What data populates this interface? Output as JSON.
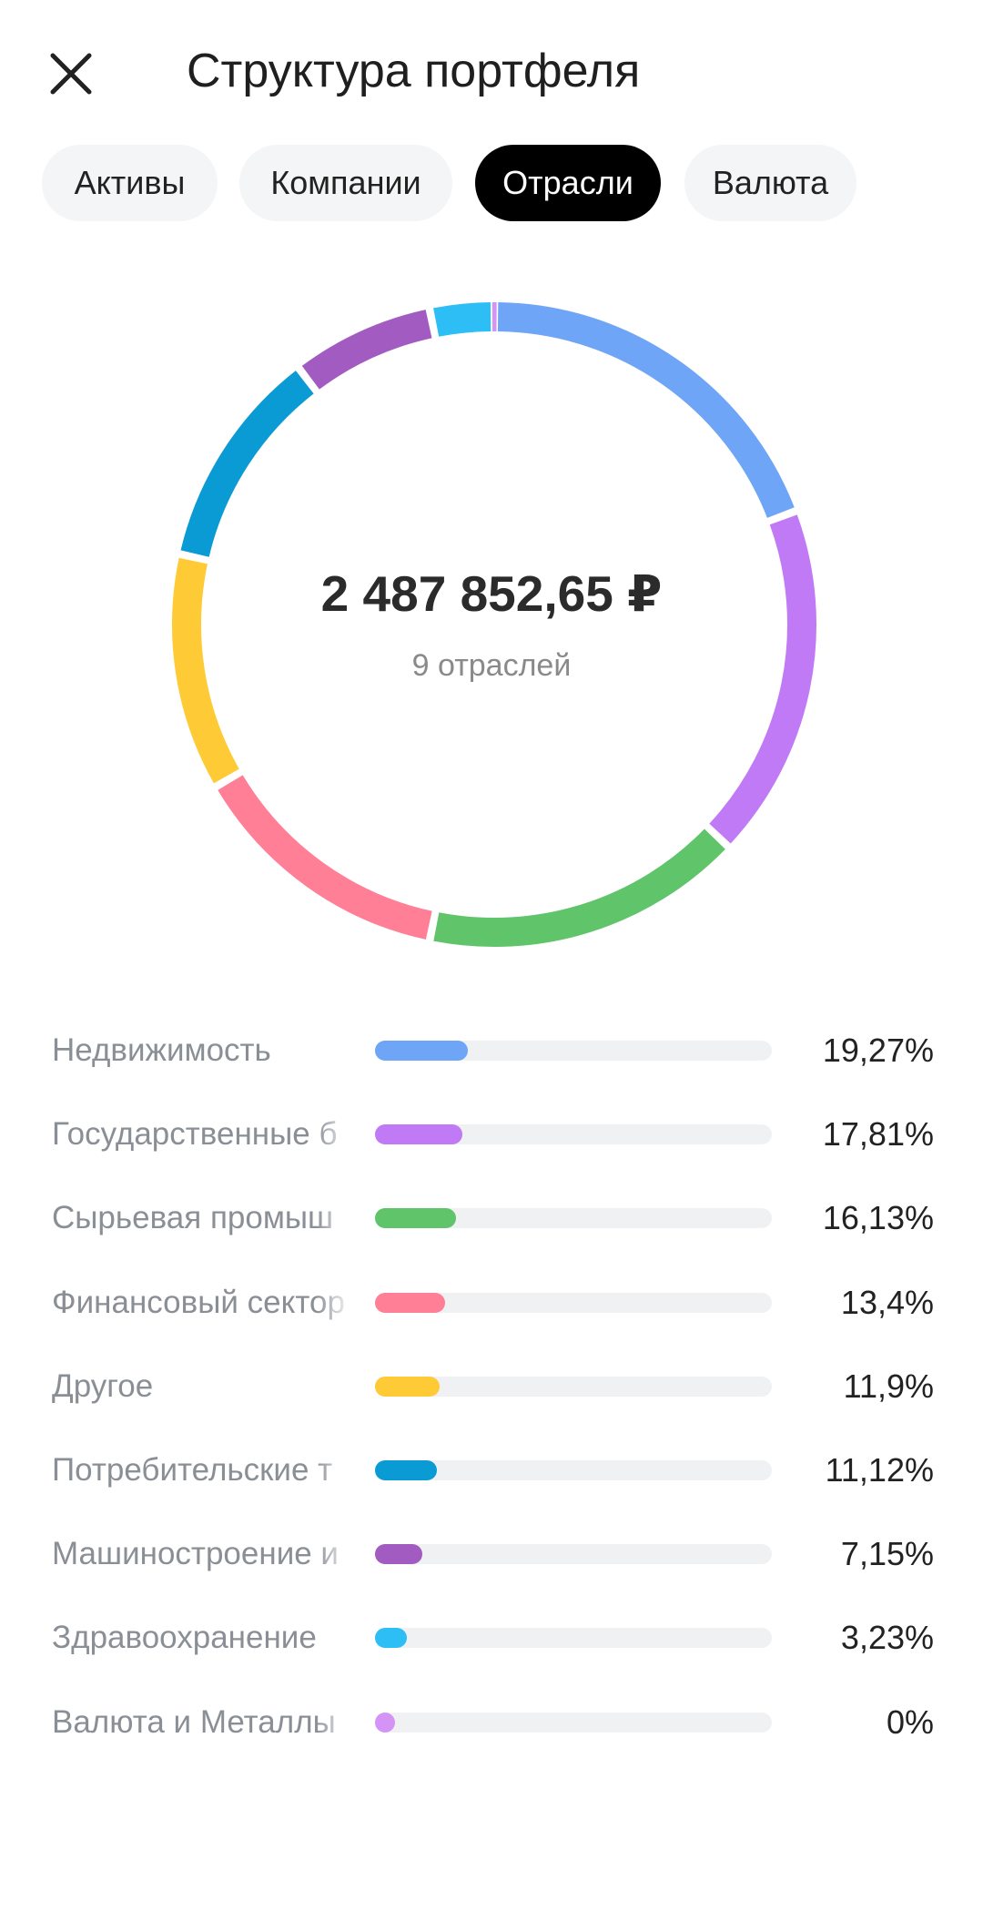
{
  "header": {
    "title": "Структура портфеля"
  },
  "tabs": [
    "Активы",
    "Компании",
    "Отрасли",
    "Валюта"
  ],
  "active_tab": 2,
  "chart_data": {
    "type": "donut",
    "center_value": "2 487 852,65 ₽",
    "center_label": "9 отраслей",
    "categories": [
      "Недвижимость",
      "Государственные б",
      "Сырьевая промыш",
      "Финансовый сектор",
      "Другое",
      "Потребительские т",
      "Машиностроение и",
      "Здравоохранение",
      "Валюта и Металлы"
    ],
    "values": [
      19.27,
      17.81,
      16.13,
      13.4,
      11.9,
      11.12,
      7.15,
      3.23,
      0
    ],
    "value_labels": [
      "19,27%",
      "17,81%",
      "16,13%",
      "13,4%",
      "11,9%",
      "11,12%",
      "7,15%",
      "3,23%",
      "0%"
    ],
    "colors": [
      "#6fa5f7",
      "#c17af5",
      "#5fc46a",
      "#fe7f96",
      "#fecb37",
      "#0a9bd5",
      "#a25cc1",
      "#2dbef5",
      "#d494f5"
    ]
  }
}
